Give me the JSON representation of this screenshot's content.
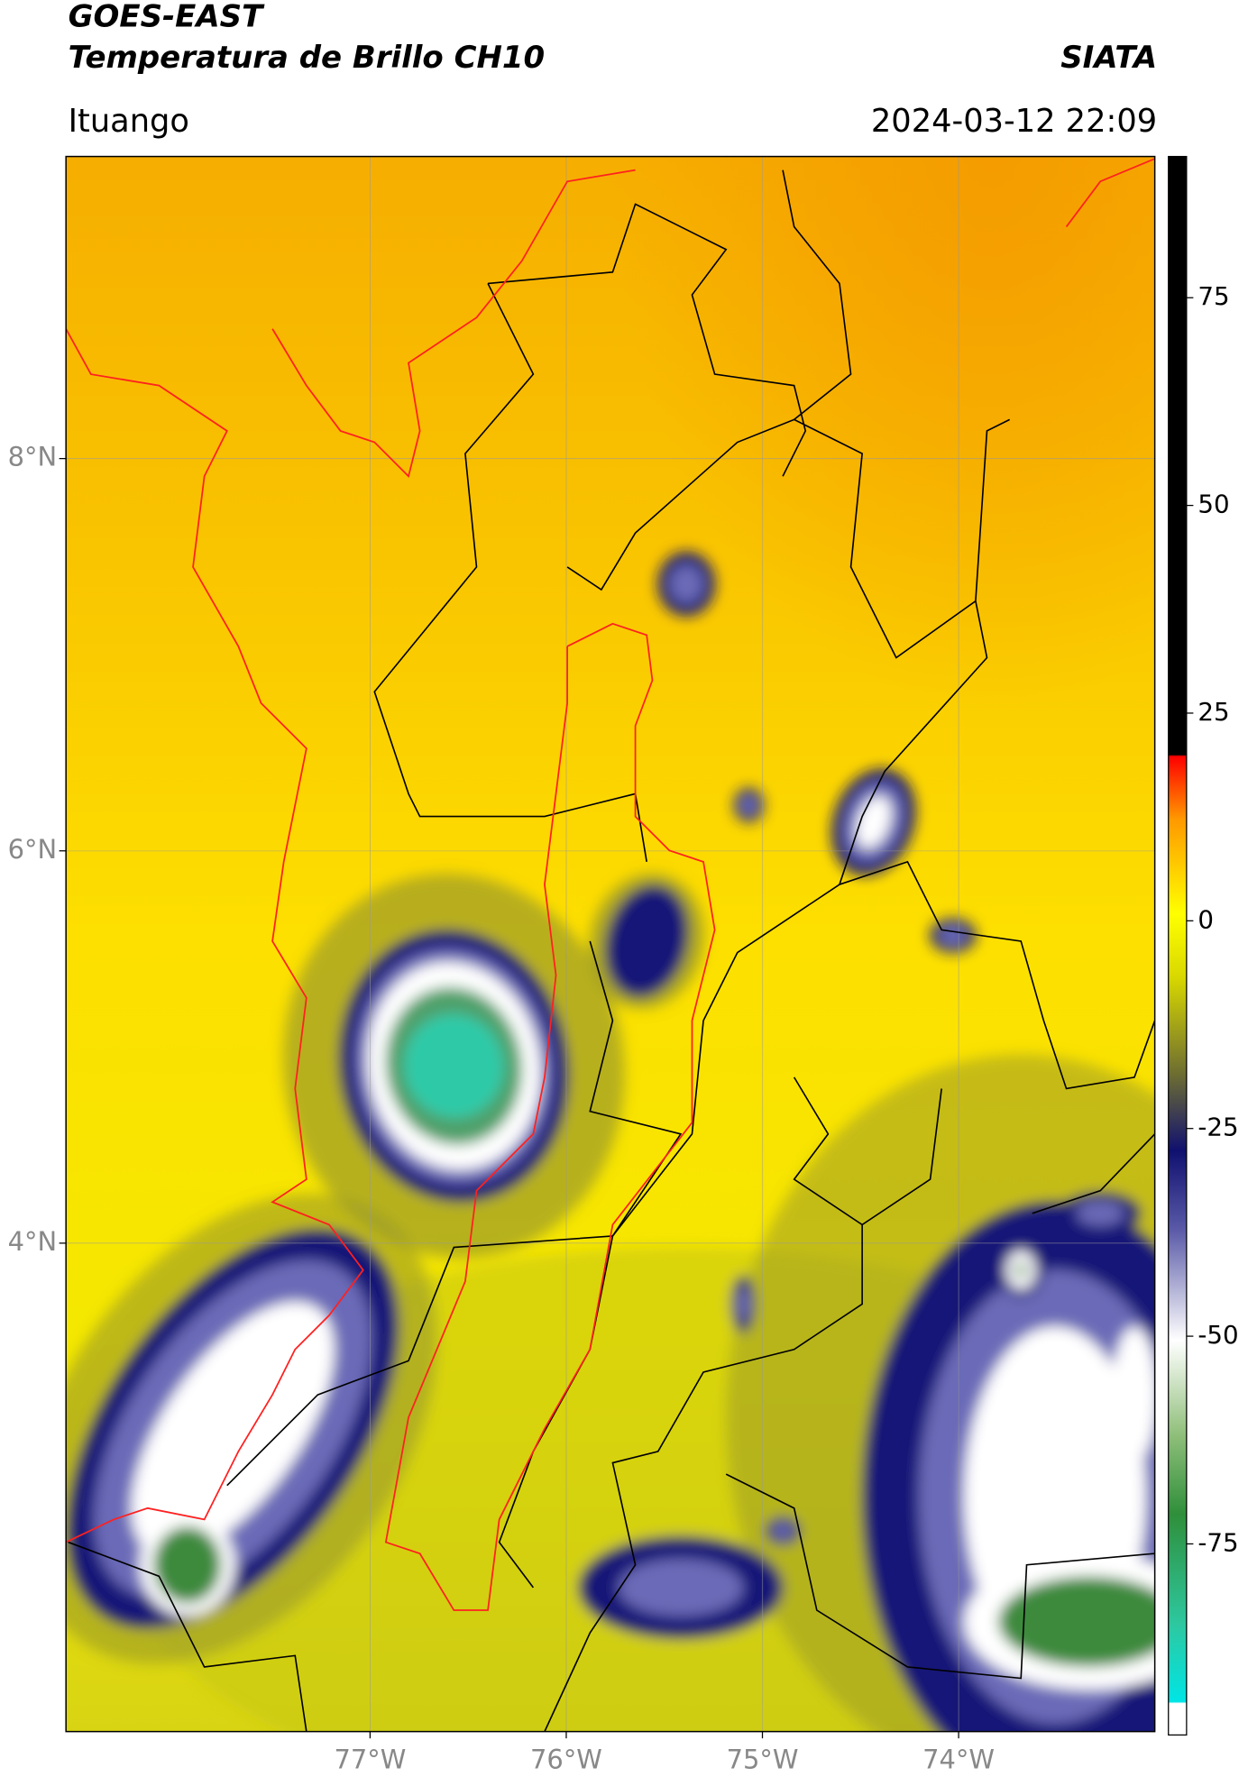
{
  "header": {
    "title": "GOES-EAST",
    "subtitle": "Temperatura de Brillo CH10",
    "source": "SIATA",
    "location": "Ituango",
    "timestamp": "2024-03-12 22:09"
  },
  "map": {
    "xlim": [
      -78.55,
      -73.0
    ],
    "ylim": [
      1.51,
      9.54
    ],
    "xticks": [
      {
        "value": -77,
        "label": "77°W"
      },
      {
        "value": -76,
        "label": "76°W"
      },
      {
        "value": -75,
        "label": "75°W"
      },
      {
        "value": -74,
        "label": "74°W"
      }
    ],
    "yticks": [
      {
        "value": 8,
        "label": "8°N"
      },
      {
        "value": 6,
        "label": "6°N"
      },
      {
        "value": 4,
        "label": "4°N"
      }
    ]
  },
  "colorbar": {
    "clim": [
      -98,
      92
    ],
    "ticks": [
      75,
      50,
      25,
      0,
      -25,
      -50,
      -75
    ]
  }
}
